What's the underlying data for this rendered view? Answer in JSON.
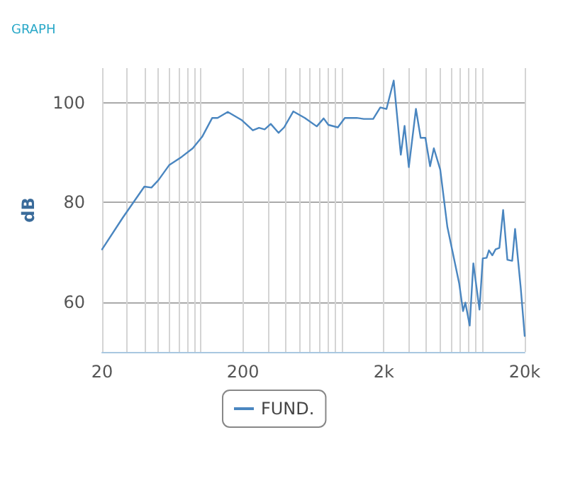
{
  "chart_data": {
    "type": "line",
    "title": "GRAPH",
    "ylabel": "dB",
    "x": [
      20,
      28.1,
      39.9,
      44.8,
      50.2,
      59.8,
      73.6,
      88,
      102.6,
      121,
      132,
      156,
      195,
      235,
      260,
      285,
      315,
      358,
      392,
      455,
      550,
      668,
      748,
      808,
      943,
      1057,
      1282,
      1440,
      1680,
      1888,
      2089,
      2351,
      2640,
      2807,
      3010,
      3380,
      3650,
      3945,
      4260,
      4530,
      5030,
      5650,
      6860,
      7300,
      7580,
      8140,
      8640,
      9550,
      10080,
      10730,
      11150,
      11780,
      12430,
      13220,
      14060,
      15070,
      16300,
      17090,
      18740,
      20000
    ],
    "series": [
      {
        "name": "FUND.",
        "color": "#4a86c0",
        "values": [
          70.6,
          77,
          83.2,
          83,
          84.5,
          87.5,
          89.2,
          90.9,
          93.2,
          97,
          97,
          98.2,
          96.6,
          94.5,
          95,
          94.7,
          95.8,
          94,
          95.1,
          98.3,
          97,
          95.3,
          96.9,
          95.6,
          95.1,
          97,
          97,
          96.8,
          96.8,
          99.1,
          98.8,
          104.5,
          89.6,
          95.4,
          87.1,
          98.8,
          93,
          93,
          87.3,
          90.9,
          86.6,
          75.1,
          63.7,
          58.2,
          59.9,
          55.3,
          67.8,
          58.5,
          68.8,
          68.9,
          70.4,
          69.4,
          70.6,
          70.9,
          78.5,
          68.5,
          68.3,
          74.7,
          62.9,
          53.2
        ]
      }
    ],
    "log": "x",
    "xlim": [
      20,
      20000
    ],
    "xticks": [
      20,
      {
        "value": 30,
        "label": null
      },
      {
        "value": 40,
        "label": null
      },
      {
        "value": 50,
        "label": null
      },
      {
        "value": 60,
        "label": null
      },
      {
        "value": 70,
        "label": null
      },
      {
        "value": 80,
        "label": null
      },
      {
        "value": 90,
        "label": null
      },
      {
        "value": 100,
        "label": null
      },
      200,
      {
        "value": 300,
        "label": null
      },
      {
        "value": 400,
        "label": null
      },
      {
        "value": 500,
        "label": null
      },
      {
        "value": 600,
        "label": null
      },
      {
        "value": 700,
        "label": null
      },
      {
        "value": 800,
        "label": null
      },
      {
        "value": 900,
        "label": null
      },
      {
        "value": 1000,
        "label": null
      },
      {
        "value": 2000,
        "label": "2k"
      },
      {
        "value": 3000,
        "label": null
      },
      {
        "value": 4000,
        "label": null
      },
      {
        "value": 5000,
        "label": null
      },
      {
        "value": 6000,
        "label": null
      },
      {
        "value": 7000,
        "label": null
      },
      {
        "value": 8000,
        "label": null
      },
      {
        "value": 9000,
        "label": null
      },
      {
        "value": 10000,
        "label": null
      },
      {
        "value": 20000,
        "label": "20k"
      }
    ],
    "ylim": [
      50,
      107
    ],
    "yticks": [
      60,
      80,
      100
    ],
    "grid": true,
    "legend": "bottom",
    "marker": "none",
    "line_style": "solid"
  }
}
